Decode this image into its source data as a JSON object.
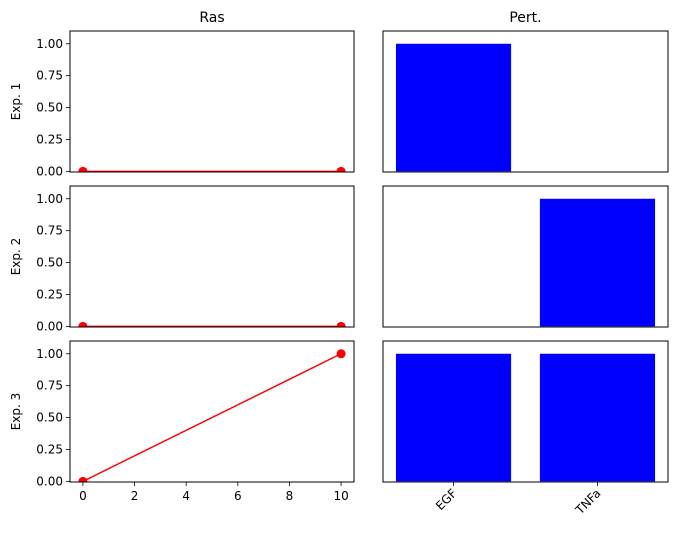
{
  "chart_data": [
    {
      "type": "line",
      "title": "Ras",
      "ylabel": "Exp. 1",
      "x": [
        0,
        10
      ],
      "y": [
        0,
        0
      ],
      "xlim": [
        -0.5,
        10.5
      ],
      "ylim": [
        0,
        1.1
      ],
      "xticks": [],
      "yticks": [
        "0.00",
        "0.25",
        "0.50",
        "0.75",
        "1.00"
      ],
      "color": "#ff0000",
      "marker": "circle"
    },
    {
      "type": "bar",
      "title": "Pert.",
      "categories": [
        "EGF",
        "TNFa"
      ],
      "values": [
        1,
        0
      ],
      "ylim": [
        0,
        1.1
      ],
      "show_xticks": false,
      "show_yticks": false,
      "color": "#0000ff"
    },
    {
      "type": "line",
      "ylabel": "Exp. 2",
      "x": [
        0,
        10
      ],
      "y": [
        0,
        0
      ],
      "xlim": [
        -0.5,
        10.5
      ],
      "ylim": [
        0,
        1.1
      ],
      "xticks": [],
      "yticks": [
        "0.00",
        "0.25",
        "0.50",
        "0.75",
        "1.00"
      ],
      "color": "#ff0000",
      "marker": "circle"
    },
    {
      "type": "bar",
      "categories": [
        "EGF",
        "TNFa"
      ],
      "values": [
        0,
        1
      ],
      "ylim": [
        0,
        1.1
      ],
      "show_xticks": false,
      "show_yticks": false,
      "color": "#0000ff"
    },
    {
      "type": "line",
      "ylabel": "Exp. 3",
      "x": [
        0,
        10
      ],
      "y": [
        0,
        1
      ],
      "xlim": [
        -0.5,
        10.5
      ],
      "ylim": [
        0,
        1.1
      ],
      "xticks": [
        "0",
        "2",
        "4",
        "6",
        "8",
        "10"
      ],
      "yticks": [
        "0.00",
        "0.25",
        "0.50",
        "0.75",
        "1.00"
      ],
      "color": "#ff0000",
      "marker": "circle"
    },
    {
      "type": "bar",
      "categories": [
        "EGF",
        "TNFa"
      ],
      "values": [
        1,
        1
      ],
      "ylim": [
        0,
        1.1
      ],
      "show_xticks": true,
      "xtick_rotation": 45,
      "show_yticks": false,
      "color": "#0000ff"
    }
  ]
}
